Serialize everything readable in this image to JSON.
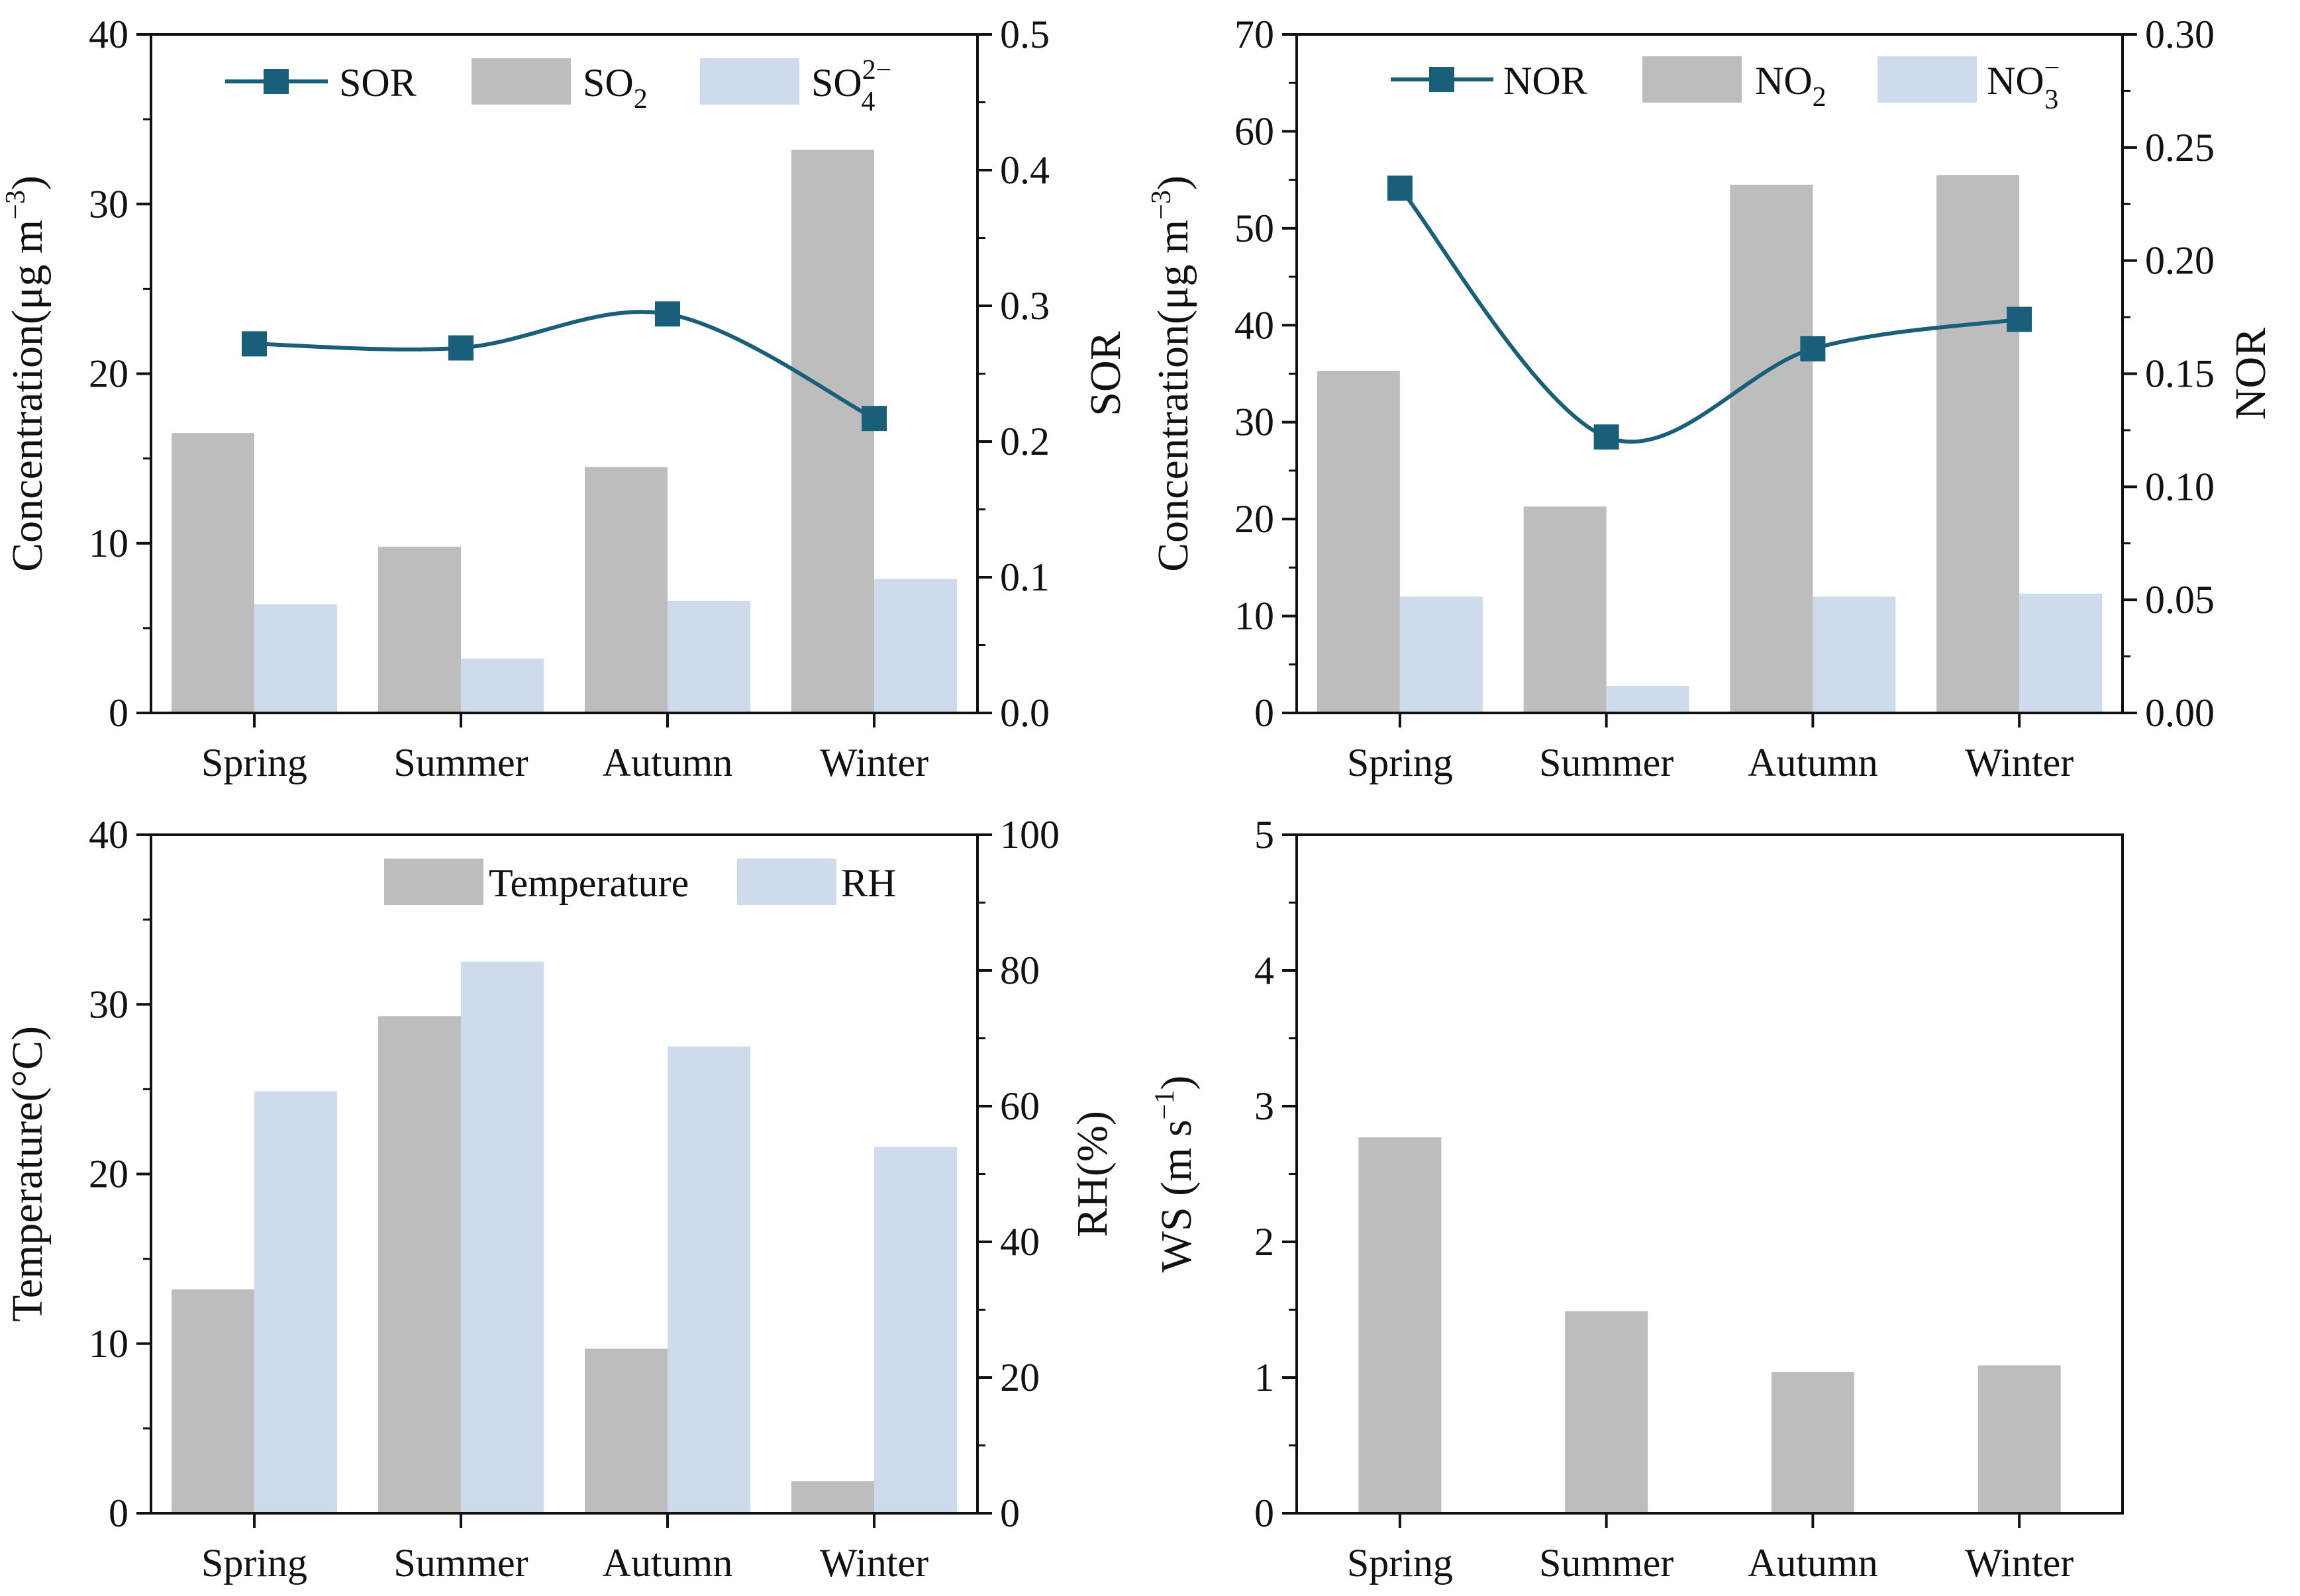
{
  "colors": {
    "bar_primary": "#bdbdbd",
    "bar_secondary": "#cddbec",
    "line": "#1a5f7a",
    "marker": "#1a5f7a",
    "axis": "#111111"
  },
  "chart_data": [
    {
      "type": "bar+line",
      "categories": [
        "Spring",
        "Summer",
        "Autumn",
        "Winter"
      ],
      "ylabel_left": "Concentration(μg m",
      "ylabel_left_sup": "−3",
      "ylabel_left_close": ")",
      "ylabel_right": "SOR",
      "ylim_left": [
        0,
        40
      ],
      "ylim_right": [
        0,
        0.5
      ],
      "yticks_left": [
        "0",
        "10",
        "20",
        "30",
        "40"
      ],
      "yticks_right": [
        "0.0",
        "0.1",
        "0.2",
        "0.3",
        "0.4",
        "0.5"
      ],
      "series": [
        {
          "name": "SO",
          "sub": "2",
          "sup": "",
          "kind": "bar",
          "axis": "left",
          "values": [
            16.5,
            9.8,
            14.5,
            33.2
          ]
        },
        {
          "name": "SO",
          "sub": "4",
          "sup": "2−",
          "kind": "bar",
          "axis": "left",
          "values": [
            6.4,
            3.2,
            6.6,
            7.9
          ]
        },
        {
          "name": "SOR",
          "sub": "",
          "sup": "",
          "kind": "line",
          "axis": "right",
          "values": [
            0.272,
            0.269,
            0.294,
            0.217
          ]
        }
      ]
    },
    {
      "type": "bar+line",
      "categories": [
        "Spring",
        "Summer",
        "Autumn",
        "Winter"
      ],
      "ylabel_left": "Concentration(μg m",
      "ylabel_left_sup": "−3",
      "ylabel_left_close": ")",
      "ylabel_right": "NOR",
      "ylim_left": [
        0,
        70
      ],
      "ylim_right": [
        0,
        0.3
      ],
      "yticks_left": [
        "0",
        "10",
        "20",
        "30",
        "40",
        "50",
        "60",
        "70"
      ],
      "yticks_right": [
        "0.00",
        "0.05",
        "0.10",
        "0.15",
        "0.20",
        "0.25",
        "0.30"
      ],
      "series": [
        {
          "name": "NO",
          "sub": "2",
          "sup": "",
          "kind": "bar",
          "axis": "left",
          "values": [
            35.3,
            21.3,
            54.5,
            55.5
          ]
        },
        {
          "name": "NO",
          "sub": "3",
          "sup": "−",
          "kind": "bar",
          "axis": "left",
          "values": [
            12.0,
            2.8,
            12.0,
            12.3
          ]
        },
        {
          "name": "NOR",
          "sub": "",
          "sup": "",
          "kind": "line",
          "axis": "right",
          "values": [
            0.232,
            0.122,
            0.161,
            0.174
          ]
        }
      ]
    },
    {
      "type": "bar",
      "categories": [
        "Spring",
        "Summer",
        "Autumn",
        "Winter"
      ],
      "ylabel_left": "Temperature(°C)",
      "ylabel_right": "RH(%)",
      "ylim_left": [
        0,
        40
      ],
      "ylim_right": [
        0,
        100
      ],
      "yticks_left": [
        "0",
        "10",
        "20",
        "30",
        "40"
      ],
      "yticks_right": [
        "0",
        "20",
        "40",
        "60",
        "80",
        "100"
      ],
      "series": [
        {
          "name": "Temperature",
          "kind": "bar",
          "axis": "left",
          "values": [
            13.2,
            29.3,
            9.7,
            1.9
          ]
        },
        {
          "name": "RH",
          "kind": "bar",
          "axis": "right",
          "values": [
            62.2,
            81.3,
            68.8,
            54.0
          ]
        }
      ]
    },
    {
      "type": "bar",
      "categories": [
        "Spring",
        "Summer",
        "Autumn",
        "Winter"
      ],
      "ylabel_left": "WS (m s",
      "ylabel_left_sup": "−1",
      "ylabel_left_close": ")",
      "ylim_left": [
        0,
        5
      ],
      "yticks_left": [
        "0",
        "1",
        "2",
        "3",
        "4",
        "5"
      ],
      "series": [
        {
          "name": "WS",
          "kind": "bar",
          "axis": "left",
          "values": [
            2.77,
            1.49,
            1.04,
            1.09
          ]
        }
      ]
    }
  ]
}
